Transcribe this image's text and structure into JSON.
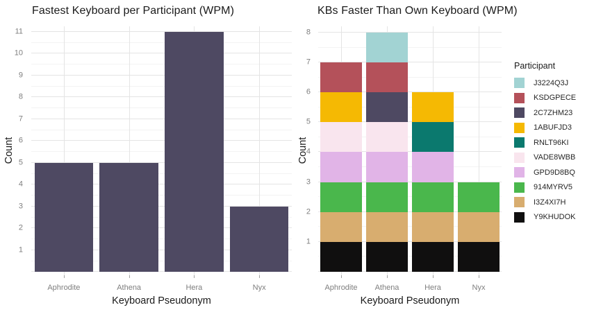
{
  "palette": {
    "background": "#ffffff",
    "grid_major": "#e4e4e4",
    "grid_minor": "#f3f3f3",
    "tick_label_color": "#7e7e7e",
    "text_color": "#1a1a1a"
  },
  "chart_data": [
    {
      "type": "bar",
      "title": "Fastest Keyboard per Participant (WPM)",
      "xlabel": "Keyboard Pseudonym",
      "ylabel": "Count",
      "categories": [
        "Aphrodite",
        "Athena",
        "Hera",
        "Nyx"
      ],
      "values": [
        5,
        5,
        11,
        3
      ],
      "bar_color": "#4e4962",
      "y_ticks": [
        1,
        2,
        3,
        4,
        5,
        6,
        7,
        8,
        9,
        10,
        11
      ],
      "ylim": [
        -0.15,
        11.25
      ],
      "grid": true,
      "legend_position": "none"
    },
    {
      "type": "stacked_bar",
      "title": "KBs Faster Than Own Keyboard (WPM)",
      "xlabel": "Keyboard Pseudonym",
      "ylabel": "Count",
      "categories": [
        "Aphrodite",
        "Athena",
        "Hera",
        "Nyx"
      ],
      "legend_title": "Participant",
      "legend_position": "right",
      "series": [
        {
          "name": "J3224Q3J",
          "color": "#a2d3d3",
          "values": [
            0,
            1,
            0,
            0
          ]
        },
        {
          "name": "KSDGPECE",
          "color": "#b4515a",
          "values": [
            1,
            1,
            0,
            0
          ]
        },
        {
          "name": "2C7ZHM23",
          "color": "#4e4962",
          "values": [
            0,
            1,
            0,
            0
          ]
        },
        {
          "name": "1ABUFJD3",
          "color": "#f5b903",
          "values": [
            1,
            0,
            1,
            0
          ]
        },
        {
          "name": "RNLT96KI",
          "color": "#0b796e",
          "values": [
            0,
            0,
            1,
            0
          ]
        },
        {
          "name": "VADE8WBB",
          "color": "#f9e5ee",
          "values": [
            1,
            1,
            0,
            0
          ]
        },
        {
          "name": "GPD9D8BQ",
          "color": "#e1b4e7",
          "values": [
            1,
            1,
            1,
            0
          ]
        },
        {
          "name": "914MYRV5",
          "color": "#4ab74c",
          "values": [
            1,
            1,
            1,
            1
          ]
        },
        {
          "name": "I3Z4XI7H",
          "color": "#d8ad6f",
          "values": [
            1,
            1,
            1,
            1
          ]
        },
        {
          "name": "Y9KHUDOK",
          "color": "#100f0f",
          "values": [
            1,
            1,
            1,
            1
          ]
        }
      ],
      "stack_order_bottom_to_top": [
        "Y9KHUDOK",
        "I3Z4XI7H",
        "914MYRV5",
        "GPD9D8BQ",
        "VADE8WBB",
        "RNLT96KI",
        "1ABUFJD3",
        "2C7ZHM23",
        "KSDGPECE",
        "J3224Q3J"
      ],
      "totals": [
        7,
        8,
        6,
        3
      ],
      "y_ticks": [
        1,
        2,
        3,
        4,
        5,
        6,
        7,
        8
      ],
      "ylim": [
        -0.12,
        8.21
      ],
      "grid": true
    }
  ]
}
